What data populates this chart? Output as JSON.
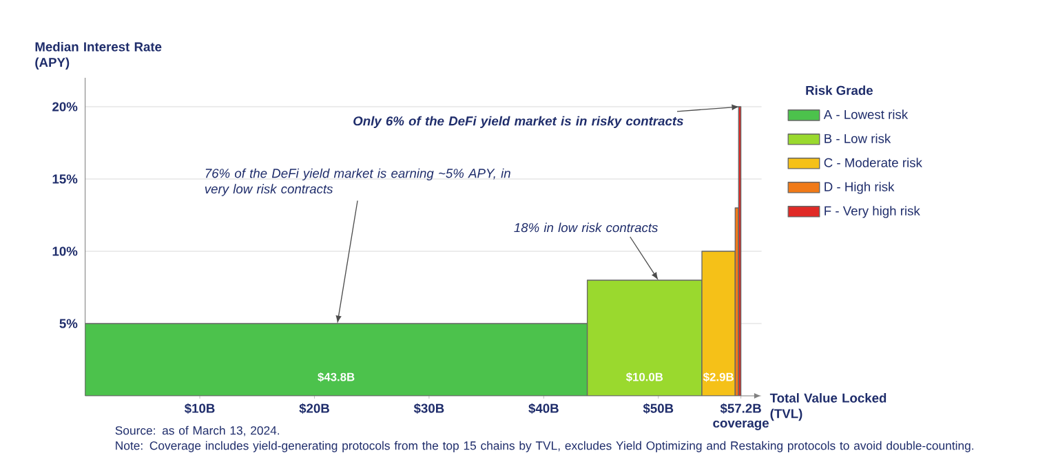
{
  "chart_data": {
    "type": "area",
    "xlabel": "Total Value Locked (TVL)",
    "ylabel": "Median Interest Rate (APY)",
    "legend_title": "Risk Grade",
    "legend": "right",
    "grid": "y",
    "xlim": [
      0,
      59
    ],
    "ylim": [
      0,
      22
    ],
    "xticks": [
      {
        "value": 10,
        "label": "$10B"
      },
      {
        "value": 20,
        "label": "$20B"
      },
      {
        "value": 30,
        "label": "$30B"
      },
      {
        "value": 40,
        "label": "$40B"
      },
      {
        "value": 50,
        "label": "$50B"
      },
      {
        "value": 57.2,
        "label": "$57.2B coverage"
      }
    ],
    "yticks": [
      {
        "value": 5,
        "label": "5%"
      },
      {
        "value": 10,
        "label": "10%"
      },
      {
        "value": 15,
        "label": "15%"
      },
      {
        "value": 20,
        "label": "20%"
      }
    ],
    "series": [
      {
        "name": "A - Lowest risk",
        "color": "#4cc24c",
        "x": [
          0,
          43.8
        ],
        "values": [
          5,
          5
        ]
      },
      {
        "name": "B - Low risk",
        "color": "#9ad92e",
        "x": [
          43.8,
          53.8
        ],
        "values": [
          8,
          8
        ]
      },
      {
        "name": "C - Moderate risk",
        "color": "#f5c118",
        "x": [
          53.8,
          56.7
        ],
        "values": [
          10,
          10
        ]
      },
      {
        "name": "D - High risk",
        "color": "#f07a18",
        "x": [
          56.7,
          57.0
        ],
        "values": [
          13,
          13
        ]
      },
      {
        "name": "F - Very high risk",
        "color": "#e02a26",
        "x": [
          57.0,
          57.2
        ],
        "values": [
          20,
          20
        ]
      }
    ],
    "annotations": [
      {
        "text": "76% of the DeFi yield market is earning ~5% APY, in very low risk contracts",
        "x": 22,
        "y": 5
      },
      {
        "text": "18% in low risk contracts",
        "x": 50,
        "y": 8
      },
      {
        "text": "Only 6% of the DeFi yield market is in risky contracts",
        "x": 57.1,
        "y": 20
      },
      "$43.8B",
      "$10.0B",
      "$2.9B",
      "Source: as of March 13, 2024.",
      "Note: Coverage includes yield-generating protocols from the top 15 chains by TVL, excludes Yield Optimizing and Restaking protocols to avoid double-counting."
    ]
  }
}
